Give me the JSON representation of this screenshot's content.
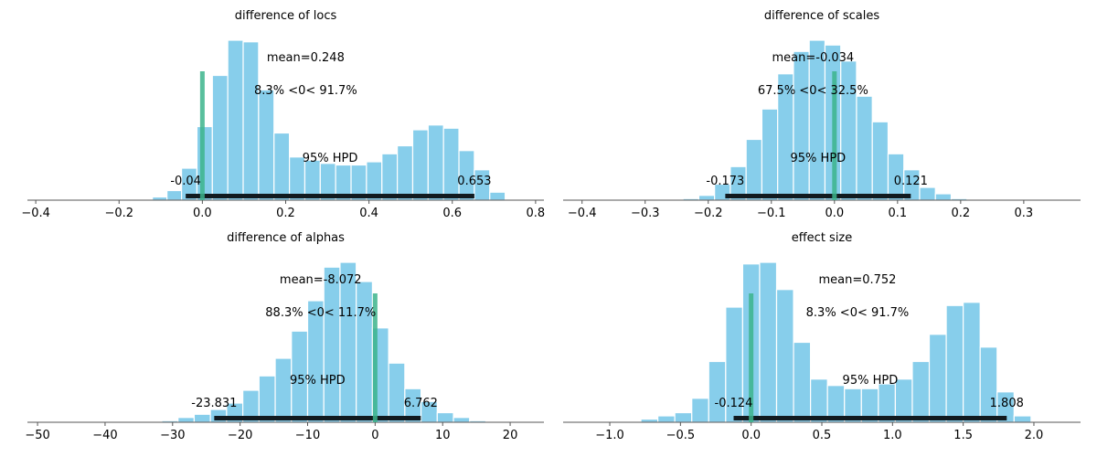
{
  "chart_data": [
    {
      "type": "bar",
      "title": "difference of locs",
      "xlim": [
        -0.42,
        0.82
      ],
      "xticks": [
        -0.4,
        -0.2,
        0.0,
        0.2,
        0.4,
        0.6,
        0.8
      ],
      "xtick_labels": [
        "−0.4",
        "−0.2",
        "0.0",
        "0.2",
        "0.4",
        "0.6",
        "0.8"
      ],
      "bins": [
        {
          "x0": -0.12,
          "x1": -0.085,
          "h": 2
        },
        {
          "x0": -0.085,
          "x1": -0.05,
          "h": 6
        },
        {
          "x0": -0.05,
          "x1": -0.013,
          "h": 20
        },
        {
          "x0": -0.013,
          "x1": 0.024,
          "h": 46
        },
        {
          "x0": 0.024,
          "x1": 0.061,
          "h": 78
        },
        {
          "x0": 0.061,
          "x1": 0.098,
          "h": 100
        },
        {
          "x0": 0.098,
          "x1": 0.135,
          "h": 99
        },
        {
          "x0": 0.135,
          "x1": 0.172,
          "h": 69
        },
        {
          "x0": 0.172,
          "x1": 0.209,
          "h": 42
        },
        {
          "x0": 0.209,
          "x1": 0.246,
          "h": 27
        },
        {
          "x0": 0.246,
          "x1": 0.283,
          "h": 25
        },
        {
          "x0": 0.283,
          "x1": 0.32,
          "h": 23
        },
        {
          "x0": 0.32,
          "x1": 0.357,
          "h": 22
        },
        {
          "x0": 0.357,
          "x1": 0.394,
          "h": 22
        },
        {
          "x0": 0.394,
          "x1": 0.431,
          "h": 24
        },
        {
          "x0": 0.431,
          "x1": 0.468,
          "h": 29
        },
        {
          "x0": 0.468,
          "x1": 0.505,
          "h": 34
        },
        {
          "x0": 0.505,
          "x1": 0.542,
          "h": 44
        },
        {
          "x0": 0.542,
          "x1": 0.579,
          "h": 47
        },
        {
          "x0": 0.579,
          "x1": 0.616,
          "h": 45
        },
        {
          "x0": 0.616,
          "x1": 0.653,
          "h": 31
        },
        {
          "x0": 0.653,
          "x1": 0.69,
          "h": 19
        },
        {
          "x0": 0.69,
          "x1": 0.727,
          "h": 5
        }
      ],
      "ref_value": 0,
      "hpd": [
        -0.04,
        0.653
      ],
      "hpd_low_label": "-0.04",
      "hpd_high_label": "0.653",
      "hpd_label": "95% HPD",
      "mean_label": "mean=0.248",
      "mean_x": 0.248,
      "ref_label": "8.3% <0< 91.7%"
    },
    {
      "type": "bar",
      "title": "difference of scales",
      "xlim": [
        -0.43,
        0.39
      ],
      "xticks": [
        -0.4,
        -0.3,
        -0.2,
        -0.1,
        0.0,
        0.1,
        0.2,
        0.3
      ],
      "xtick_labels": [
        "−0.4",
        "−0.3",
        "−0.2",
        "−0.1",
        "0.0",
        "0.1",
        "0.2",
        "0.3"
      ],
      "bins": [
        {
          "x0": -0.24,
          "x1": -0.215,
          "h": 1
        },
        {
          "x0": -0.215,
          "x1": -0.19,
          "h": 3
        },
        {
          "x0": -0.19,
          "x1": -0.165,
          "h": 10
        },
        {
          "x0": -0.165,
          "x1": -0.14,
          "h": 21
        },
        {
          "x0": -0.14,
          "x1": -0.115,
          "h": 38
        },
        {
          "x0": -0.115,
          "x1": -0.09,
          "h": 57
        },
        {
          "x0": -0.09,
          "x1": -0.065,
          "h": 79
        },
        {
          "x0": -0.065,
          "x1": -0.04,
          "h": 93
        },
        {
          "x0": -0.04,
          "x1": -0.015,
          "h": 100
        },
        {
          "x0": -0.015,
          "x1": 0.01,
          "h": 97
        },
        {
          "x0": 0.01,
          "x1": 0.035,
          "h": 87
        },
        {
          "x0": 0.035,
          "x1": 0.06,
          "h": 65
        },
        {
          "x0": 0.06,
          "x1": 0.085,
          "h": 49
        },
        {
          "x0": 0.085,
          "x1": 0.11,
          "h": 29
        },
        {
          "x0": 0.11,
          "x1": 0.135,
          "h": 19
        },
        {
          "x0": 0.135,
          "x1": 0.16,
          "h": 8
        },
        {
          "x0": 0.16,
          "x1": 0.185,
          "h": 4
        },
        {
          "x0": 0.185,
          "x1": 0.21,
          "h": 1
        }
      ],
      "ref_value": 0,
      "hpd": [
        -0.173,
        0.121
      ],
      "hpd_low_label": "-0.173",
      "hpd_high_label": "0.121",
      "hpd_label": "95% HPD",
      "mean_label": "mean=-0.034",
      "mean_x": -0.034,
      "ref_label": "67.5% <0< 32.5%"
    },
    {
      "type": "bar",
      "title": "difference of alphas",
      "xlim": [
        -51.5,
        25
      ],
      "xticks": [
        -50,
        -40,
        -30,
        -20,
        -10,
        0,
        10,
        20
      ],
      "xtick_labels": [
        "−50",
        "−40",
        "−30",
        "−20",
        "−10",
        "0",
        "10",
        "20"
      ],
      "bins": [
        {
          "x0": -34,
          "x1": -31.6,
          "h": 0.3
        },
        {
          "x0": -31.6,
          "x1": -29.2,
          "h": 1
        },
        {
          "x0": -29.2,
          "x1": -26.8,
          "h": 3
        },
        {
          "x0": -26.8,
          "x1": -24.4,
          "h": 5
        },
        {
          "x0": -24.4,
          "x1": -22,
          "h": 8
        },
        {
          "x0": -22,
          "x1": -19.6,
          "h": 12
        },
        {
          "x0": -19.6,
          "x1": -17.2,
          "h": 20
        },
        {
          "x0": -17.2,
          "x1": -14.8,
          "h": 29
        },
        {
          "x0": -14.8,
          "x1": -12.4,
          "h": 40
        },
        {
          "x0": -12.4,
          "x1": -10,
          "h": 57
        },
        {
          "x0": -10,
          "x1": -7.6,
          "h": 76
        },
        {
          "x0": -7.6,
          "x1": -5.2,
          "h": 97
        },
        {
          "x0": -5.2,
          "x1": -2.8,
          "h": 100
        },
        {
          "x0": -2.8,
          "x1": -0.4,
          "h": 88
        },
        {
          "x0": -0.4,
          "x1": 2,
          "h": 59
        },
        {
          "x0": 2,
          "x1": 4.4,
          "h": 37
        },
        {
          "x0": 4.4,
          "x1": 6.8,
          "h": 21
        },
        {
          "x0": 6.8,
          "x1": 9.2,
          "h": 13
        },
        {
          "x0": 9.2,
          "x1": 11.6,
          "h": 6
        },
        {
          "x0": 11.6,
          "x1": 14,
          "h": 3
        },
        {
          "x0": 14,
          "x1": 16.4,
          "h": 1
        },
        {
          "x0": 16.4,
          "x1": 18.8,
          "h": 0.3
        }
      ],
      "ref_value": 0,
      "hpd": [
        -23.831,
        6.762
      ],
      "hpd_low_label": "-23.831",
      "hpd_high_label": "6.762",
      "hpd_label": "95% HPD",
      "mean_label": "mean=-8.072",
      "mean_x": -8.072,
      "ref_label": "88.3% <0< 11.7%"
    },
    {
      "type": "bar",
      "title": "effect size",
      "xlim": [
        -1.33,
        2.33
      ],
      "xticks": [
        -1.0,
        -0.5,
        0.0,
        0.5,
        1.0,
        1.5,
        2.0
      ],
      "xtick_labels": [
        "−1.0",
        "−0.5",
        "0.0",
        "0.5",
        "1.0",
        "1.5",
        "2.0"
      ],
      "bins": [
        {
          "x0": -0.45,
          "x1": -0.39,
          "h": 0.5
        },
        {
          "x0": -0.39,
          "x1": -0.33,
          "h": 2
        },
        {
          "x0": -0.33,
          "x1": -0.27,
          "h": 4
        },
        {
          "x0": -0.27,
          "x1": -0.21,
          "h": 6
        },
        {
          "x0": -0.21,
          "x1": -0.15,
          "h": 15
        },
        {
          "x0": -0.15,
          "x1": -0.09,
          "h": 38
        },
        {
          "x0": -0.09,
          "x1": -0.03,
          "h": 72
        },
        {
          "x0": -0.03,
          "x1": 0.03,
          "h": 99
        },
        {
          "x0": 0.03,
          "x1": 0.09,
          "h": 100
        },
        {
          "x0": 0.09,
          "x1": 0.15,
          "h": 83
        },
        {
          "x0": 0.15,
          "x1": 0.21,
          "h": 50
        },
        {
          "x0": 0.21,
          "x1": 0.27,
          "h": 27
        },
        {
          "x0": 0.27,
          "x1": 0.33,
          "h": 23
        },
        {
          "x0": 0.33,
          "x1": 0.39,
          "h": 21
        },
        {
          "x0": 0.39,
          "x1": 0.45,
          "h": 21
        },
        {
          "x0": 0.45,
          "x1": 0.51,
          "h": 24
        },
        {
          "x0": 0.51,
          "x1": 0.57,
          "h": 27
        },
        {
          "x0": 0.57,
          "x1": 0.63,
          "h": 38
        },
        {
          "x0": 0.63,
          "x1": 0.69,
          "h": 55
        },
        {
          "x0": 0.69,
          "x1": 0.75,
          "h": 73
        },
        {
          "x0": 0.75,
          "x1": 0.81,
          "h": 75
        },
        {
          "x0": 0.81,
          "x1": 0.87,
          "h": 47
        },
        {
          "x0": 0.87,
          "x1": 0.93,
          "h": 19
        },
        {
          "x0": 0.93,
          "x1": 0.99,
          "h": 4
        }
      ],
      "bin_scale": 2.0,
      "ref_value": 0,
      "hpd": [
        -0.124,
        1.808
      ],
      "hpd_low_label": "-0.124",
      "hpd_high_label": "1.808",
      "hpd_label": "95% HPD",
      "mean_label": "mean=0.752",
      "mean_x": 0.752,
      "ref_label": "8.3% <0< 91.7%"
    }
  ],
  "colors": {
    "bar_fill": "#87ceeb",
    "bar_edge": "#ffffff",
    "ref_line": "#3cb48c",
    "hpd_bar": "#111a1f",
    "axis": "#555555",
    "text": "#000000"
  }
}
